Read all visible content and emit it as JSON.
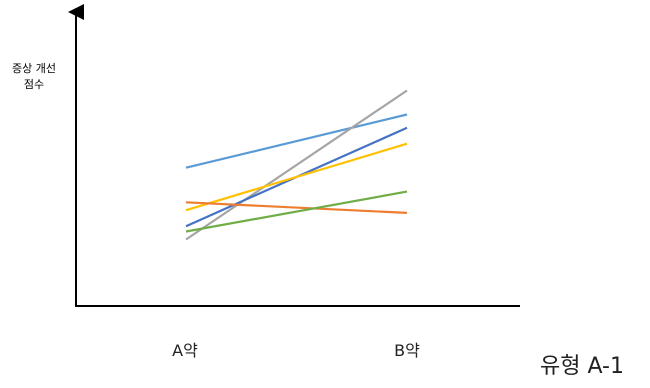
{
  "chart_data": {
    "type": "line",
    "ylabel": "증상 개선\n점수",
    "caption": "유형 A-1",
    "categories": [
      "A약",
      "B약"
    ],
    "ylim": [
      0,
      10
    ],
    "grid": false,
    "legend": "none",
    "series": [
      {
        "color": "#5B9BD5",
        "values": [
          5.2,
          7.2
        ]
      },
      {
        "color": "#A5A5A5",
        "values": [
          2.5,
          8.1
        ]
      },
      {
        "color": "#4472C4",
        "values": [
          3.0,
          6.7
        ]
      },
      {
        "color": "#FFC000",
        "values": [
          3.6,
          6.1
        ]
      },
      {
        "color": "#ED7D31",
        "values": [
          3.9,
          3.5
        ]
      },
      {
        "color": "#70AD47",
        "values": [
          2.8,
          4.3
        ]
      }
    ]
  }
}
